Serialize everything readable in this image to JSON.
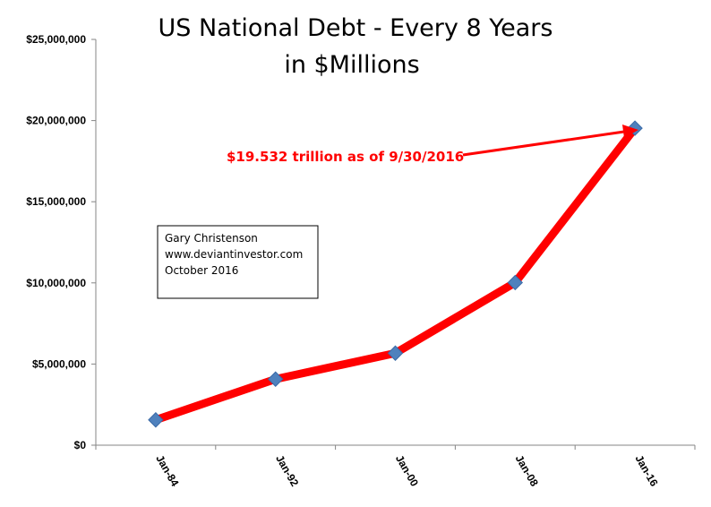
{
  "chart_data": {
    "type": "line",
    "title_line1": "US National Debt - Every 8 Years",
    "title_line2": "in $Millions",
    "categories": [
      "Jan-84",
      "Jan-92",
      "Jan-00",
      "Jan-08",
      "Jan-16"
    ],
    "series": [
      {
        "values": [
          1560000,
          4070000,
          5670000,
          10020000,
          19532000
        ]
      }
    ],
    "ylim": [
      0,
      25000000
    ],
    "yticks": [
      {
        "value": 0,
        "label": "$0"
      },
      {
        "value": 5000000,
        "label": "$5,000,000"
      },
      {
        "value": 10000000,
        "label": "$10,000,000"
      },
      {
        "value": 15000000,
        "label": "$15,000,000"
      },
      {
        "value": 20000000,
        "label": "$20,000,000"
      },
      {
        "value": 25000000,
        "label": "$25,000,000"
      }
    ],
    "grid": false,
    "legend": "none",
    "annotation": "$19.532 trillion as of 9/30/2016",
    "credit_lines": [
      "Gary Christenson",
      "www.deviantinvestor.com",
      "October 2016"
    ],
    "colors": {
      "line": "#ff0000",
      "marker": "#4f81bd",
      "annotation": "#ff0000"
    }
  }
}
